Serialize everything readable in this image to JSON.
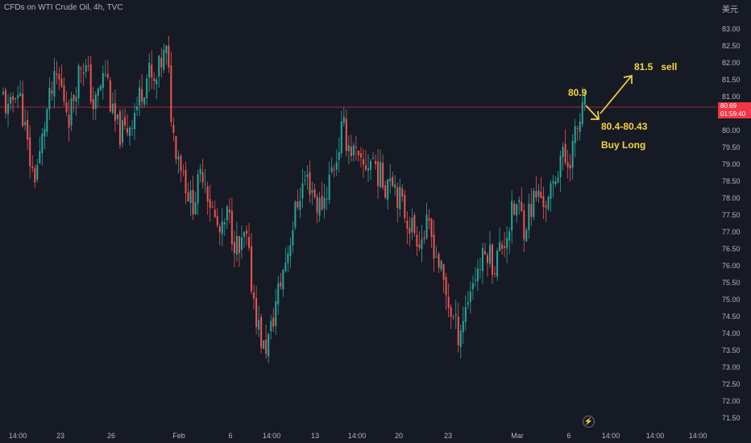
{
  "header": {
    "title": "CFDs on WTI Crude Oil, 4h, TVC",
    "currency": "美元"
  },
  "price_tag": {
    "price": "80.69",
    "countdown": "01:59:40"
  },
  "colors": {
    "up": "#26a69a",
    "down": "#ef5350",
    "annotation": "#f5d43a",
    "price_line": "#f23645",
    "background": "#161a25"
  },
  "icons": {
    "zoom": "lightning-icon"
  },
  "chart_data": {
    "type": "candlestick",
    "title": "CFDs on WTI Crude Oil, 4h, TVC",
    "ylim": [
      71.0,
      83.5
    ],
    "y_ticks": [
      "83.00",
      "82.50",
      "82.00",
      "81.50",
      "81.00",
      "80.50",
      "80.00",
      "79.50",
      "79.00",
      "78.50",
      "78.00",
      "77.50",
      "77.00",
      "76.50",
      "76.00",
      "75.50",
      "75.00",
      "74.50",
      "74.00",
      "73.50",
      "73.00",
      "72.50",
      "72.00",
      "71.50"
    ],
    "x_ticks": [
      "14:00",
      "23",
      "26",
      "Feb",
      "6",
      "14:00",
      "13",
      "14:00",
      "20",
      "23",
      "Mar",
      "6",
      "14:00",
      "14:00",
      "14:00"
    ],
    "current_price": 80.69,
    "annotations": [
      "80.9",
      "81.5   sell",
      "80.4-80.43",
      "Buy Long"
    ],
    "close_path": [
      81.0,
      80.4,
      81.3,
      80.8,
      79.5,
      78.6,
      79.2,
      80.4,
      81.1,
      81.6,
      81.0,
      80.4,
      81.4,
      82.1,
      81.6,
      80.6,
      81.3,
      81.8,
      80.4,
      80.0,
      79.9,
      80.3,
      80.7,
      81.3,
      81.7,
      81.2,
      82.0,
      82.3,
      79.9,
      79.3,
      78.6,
      77.8,
      78.2,
      78.9,
      78.0,
      77.3,
      76.8,
      77.5,
      76.9,
      76.3,
      76.9,
      75.5,
      74.3,
      73.5,
      73.9,
      74.9,
      75.7,
      76.5,
      77.4,
      78.2,
      78.6,
      78.3,
      77.7,
      78.0,
      78.7,
      79.2,
      80.1,
      79.6,
      79.3,
      78.8,
      79.0,
      79.2,
      78.7,
      78.4,
      78.9,
      78.2,
      77.7,
      77.3,
      77.0,
      76.8,
      77.1,
      76.7,
      76.0,
      75.2,
      74.6,
      74.0,
      74.5,
      75.3,
      75.8,
      76.1,
      76.5,
      76.0,
      76.5,
      76.9,
      77.5,
      77.8,
      77.2,
      77.7,
      78.1,
      78.0,
      77.8,
      78.5,
      79.3,
      79.0,
      79.5,
      80.2,
      80.69
    ]
  }
}
